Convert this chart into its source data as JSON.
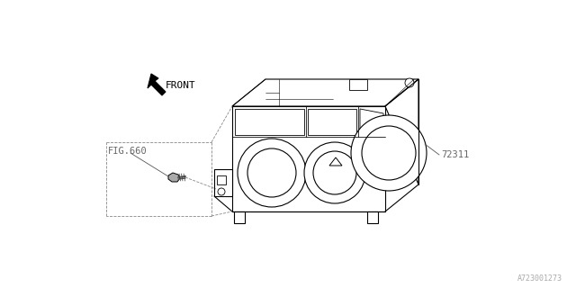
{
  "bg_color": "#ffffff",
  "line_color": "#000000",
  "label_color": "#666666",
  "part_number": "72311",
  "fig_ref": "FIG.660",
  "diagram_id": "A723001273",
  "front_label": "FRONT",
  "figsize": [
    6.4,
    3.2
  ],
  "dpi": 100,
  "line_width": 0.8
}
